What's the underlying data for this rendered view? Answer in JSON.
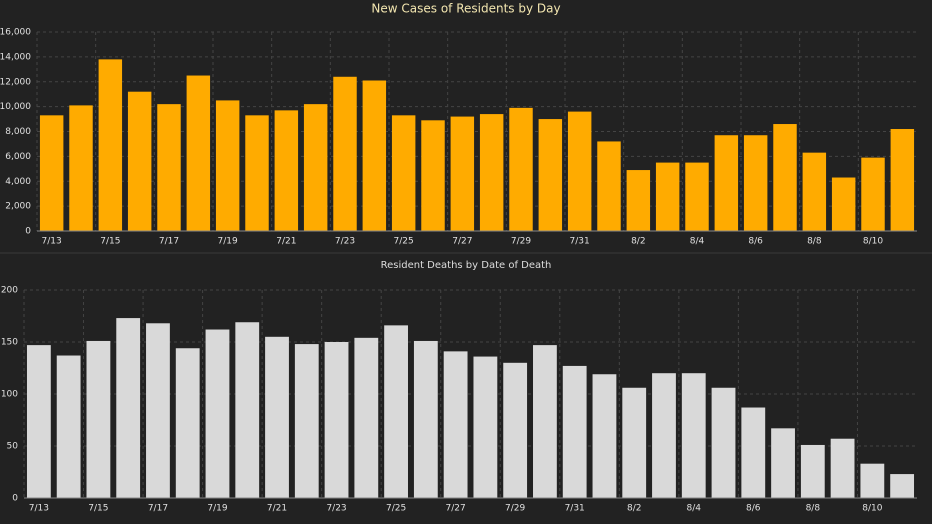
{
  "chart_data": [
    {
      "type": "bar",
      "title": "New Cases of Residents by Day",
      "categories": [
        "7/13",
        null,
        "7/15",
        null,
        "7/17",
        null,
        "7/19",
        null,
        "7/21",
        null,
        "7/23",
        null,
        "7/25",
        null,
        "7/27",
        null,
        "7/29",
        null,
        "7/31",
        null,
        "8/2",
        null,
        "8/4",
        null,
        "8/6",
        null,
        "8/8",
        null,
        "8/10",
        null
      ],
      "values": [
        9300,
        10100,
        13800,
        11200,
        10200,
        12500,
        10500,
        9300,
        9700,
        10200,
        12400,
        12100,
        9300,
        8900,
        9200,
        9400,
        9900,
        9000,
        9600,
        7200,
        4900,
        5500,
        5500,
        7700,
        7700,
        8600,
        6300,
        4300,
        5900,
        8200
      ],
      "color": "#ffab00",
      "ylim": [
        0,
        16000
      ],
      "yticks": [
        0,
        {
          "value": 2000,
          "label": "2,000"
        },
        {
          "value": 4000,
          "label": "4,000"
        },
        {
          "value": 6000,
          "label": "6,000"
        },
        {
          "value": 8000,
          "label": "8,000"
        },
        {
          "value": 10000,
          "label": "10,000"
        },
        {
          "value": 12000,
          "label": "12,000"
        },
        {
          "value": 14000,
          "label": "14,000"
        },
        {
          "value": 16000,
          "label": "16,000"
        }
      ],
      "grid": true
    },
    {
      "type": "bar",
      "title": "Resident Deaths by Date of Death",
      "categories": [
        "7/13",
        null,
        "7/15",
        null,
        "7/17",
        null,
        "7/19",
        null,
        "7/21",
        null,
        "7/23",
        null,
        "7/25",
        null,
        "7/27",
        null,
        "7/29",
        null,
        "7/31",
        null,
        "8/2",
        null,
        "8/4",
        null,
        "8/6",
        null,
        "8/8",
        null,
        "8/10",
        null
      ],
      "values": [
        147,
        137,
        151,
        173,
        168,
        144,
        162,
        169,
        155,
        148,
        150,
        154,
        166,
        151,
        141,
        136,
        130,
        147,
        127,
        119,
        106,
        120,
        120,
        106,
        87,
        67,
        51,
        57,
        33,
        23
      ],
      "color": "#d9d9d9",
      "ylim": [
        0,
        200
      ],
      "yticks": [
        0,
        50,
        100,
        150,
        200
      ],
      "grid": true
    }
  ]
}
